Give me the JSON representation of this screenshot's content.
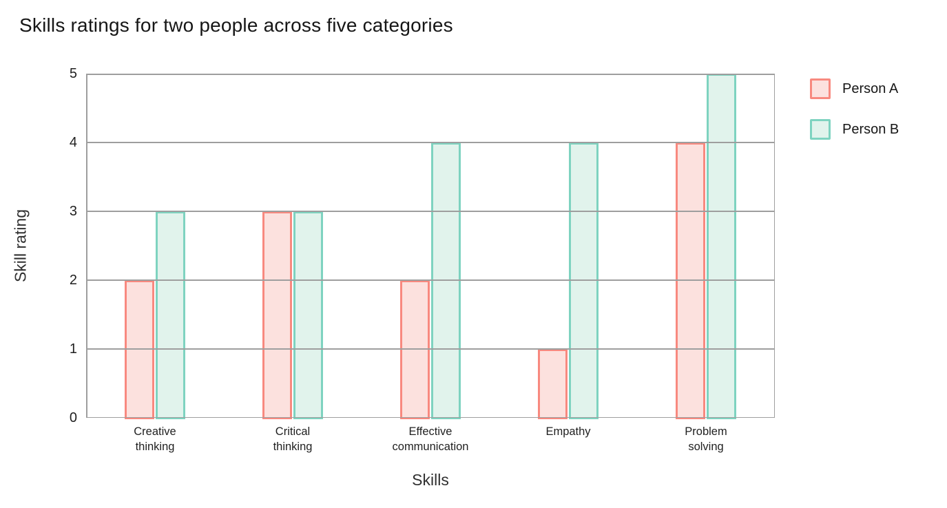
{
  "chart_data": {
    "type": "bar",
    "title": "Skills ratings for two people across five categories",
    "xlabel": "Skills",
    "ylabel": "Skill rating",
    "categories": [
      "Creative thinking",
      "Critical thinking",
      "Effective communication",
      "Empathy",
      "Problem solving"
    ],
    "category_display": [
      "Creative\nthinking",
      "Critical\nthinking",
      "Effective\ncommunication",
      "Empathy",
      "Problem\nsolving"
    ],
    "series": [
      {
        "name": "Person A",
        "values": [
          2,
          3,
          2,
          1,
          4
        ],
        "border_color": "#f8897f",
        "fill_color": "#fce1de"
      },
      {
        "name": "Person B",
        "values": [
          3,
          3,
          4,
          4,
          5
        ],
        "border_color": "#7ed3c0",
        "fill_color": "#e1f3ec"
      }
    ],
    "yticks": [
      0,
      1,
      2,
      3,
      4,
      5
    ],
    "ylim": [
      0,
      5
    ],
    "grid": true,
    "grid_color": "#9e9e9e",
    "legend_position": "right"
  }
}
